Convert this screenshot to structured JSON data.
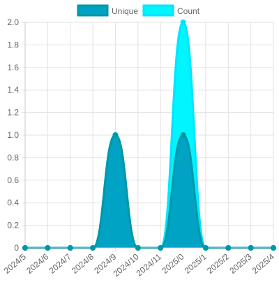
{
  "chart_data": {
    "type": "area",
    "categories": [
      "2024/5",
      "2024/6",
      "2024/7",
      "2024/8",
      "2024/9",
      "2024/10",
      "2024/11",
      "2025/0",
      "2025/1",
      "2025/2",
      "2025/3",
      "2025/4"
    ],
    "series": [
      {
        "name": "Unique",
        "values": [
          0,
          0,
          0,
          0,
          1,
          0,
          0,
          1,
          0,
          0,
          0,
          0
        ],
        "color": "#00a3c4",
        "line_color": "#0097a7"
      },
      {
        "name": "Count",
        "values": [
          0,
          0,
          0,
          0,
          1,
          0,
          0,
          2,
          0,
          0,
          0,
          0
        ],
        "color": "#00f5ff",
        "line_color": "#00e5ff"
      }
    ],
    "ylim": [
      0,
      2.0
    ],
    "yticks": [
      "0",
      "0.2",
      "0.4",
      "0.6",
      "0.8",
      "1.0",
      "1.2",
      "1.4",
      "1.6",
      "1.8",
      "2.0"
    ],
    "legend": {
      "position": "top",
      "labels": [
        "Unique",
        "Count"
      ]
    },
    "grid": true,
    "title": "",
    "xlabel": "",
    "ylabel": ""
  }
}
